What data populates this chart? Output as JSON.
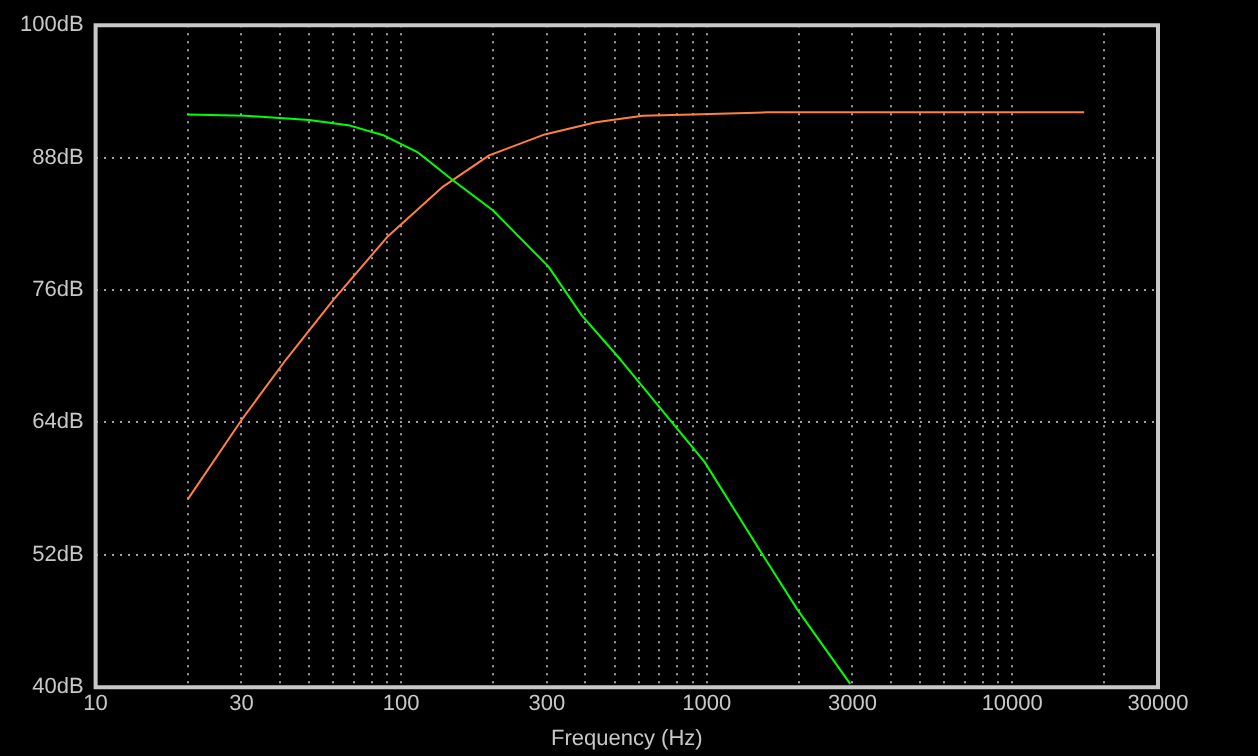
{
  "chart_data": {
    "type": "line",
    "xlabel": "Frequency (Hz)",
    "xlim": [
      10,
      30000
    ],
    "ylim": [
      40,
      100
    ],
    "xticks": [
      10,
      {
        "value": 20,
        "label": null
      },
      30,
      {
        "value": 40,
        "label": null
      },
      {
        "value": 50,
        "label": null
      },
      {
        "value": 60,
        "label": null
      },
      {
        "value": 70,
        "label": null
      },
      {
        "value": 80,
        "label": null
      },
      {
        "value": 90,
        "label": null
      },
      100,
      {
        "value": 200,
        "label": null
      },
      300,
      {
        "value": 400,
        "label": null
      },
      {
        "value": 500,
        "label": null
      },
      {
        "value": 600,
        "label": null
      },
      {
        "value": 700,
        "label": null
      },
      {
        "value": 800,
        "label": null
      },
      {
        "value": 900,
        "label": null
      },
      1000,
      {
        "value": 2000,
        "label": null
      },
      3000,
      {
        "value": 4000,
        "label": null
      },
      {
        "value": 5000,
        "label": null
      },
      {
        "value": 6000,
        "label": null
      },
      {
        "value": 7000,
        "label": null
      },
      {
        "value": 8000,
        "label": null
      },
      {
        "value": 9000,
        "label": null
      },
      10000,
      {
        "value": 20000,
        "label": null
      },
      30000
    ],
    "yticks": [
      {
        "value": 40,
        "label": "40dB"
      },
      {
        "value": 52,
        "label": "52dB"
      },
      {
        "value": 64,
        "label": "64dB"
      },
      {
        "value": 76,
        "label": "76dB"
      },
      {
        "value": 88,
        "label": "88dB"
      },
      {
        "value": 100,
        "label": "100dB"
      }
    ],
    "log": "x",
    "grid": true,
    "legend": false,
    "marker": "none",
    "line_style": "solid",
    "series": [
      {
        "color": "#00ff00",
        "x": [
          20,
          31,
          50,
          68,
          88,
          113,
          147,
          200,
          304,
          390,
          522,
          985,
          1517,
          1974,
          2950
        ],
        "values": [
          91.9,
          91.8,
          91.4,
          90.9,
          90.0,
          88.5,
          86.0,
          83.2,
          78.1,
          73.7,
          69.7,
          60.4,
          52.1,
          47.1,
          40.3
        ]
      },
      {
        "color": "#ff8040",
        "x": [
          20,
          30,
          42,
          60,
          90,
          136,
          194,
          295,
          434,
          617,
          897,
          1567,
          17200
        ],
        "values": [
          57.0,
          64.2,
          69.7,
          75.1,
          80.8,
          85.3,
          88.2,
          90.1,
          91.2,
          91.8,
          91.9,
          92.1,
          92.1
        ]
      }
    ]
  }
}
